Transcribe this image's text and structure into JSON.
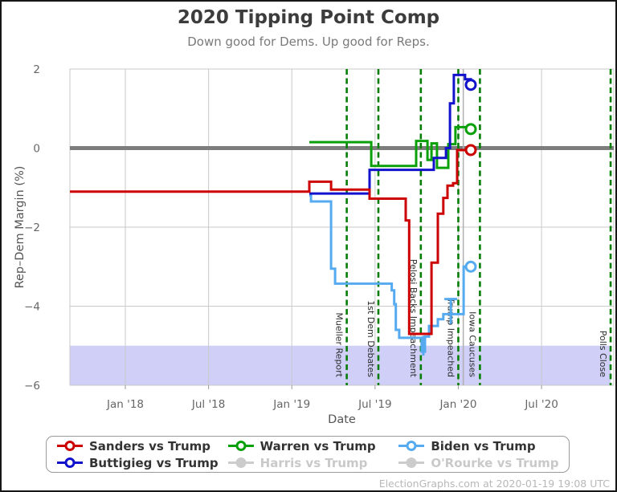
{
  "footer": {
    "credit": "ElectionGraphs.com at 2020-01-19 19:08 UTC"
  },
  "legend": {
    "entries": [
      {
        "label": "Sanders vs Trump",
        "color": "#cc0000",
        "active": true
      },
      {
        "label": "Warren vs Trump",
        "color": "#0aa00a",
        "active": true
      },
      {
        "label": "Biden vs Trump",
        "color": "#55aaf0",
        "active": true
      },
      {
        "label": "Buttigieg vs Trump",
        "color": "#1212cc",
        "active": true
      },
      {
        "label": "Harris vs Trump",
        "color": "#cccccc",
        "active": false
      },
      {
        "label": "O'Rourke vs Trump",
        "color": "#cccccc",
        "active": false
      }
    ]
  },
  "chart_data": {
    "type": "line",
    "title": "2020 Tipping Point Comp",
    "subtitle": "Down good for Dems. Up good for Reps.",
    "xlabel": "Date",
    "ylabel": "Rep–Dem Margin (%)",
    "xlim_years": [
      2017.667,
      2020.934
    ],
    "ylim": [
      -6,
      2
    ],
    "x_ticks": [
      {
        "year": 2018.0,
        "label": "Jan '18"
      },
      {
        "year": 2018.5,
        "label": "Jul '18"
      },
      {
        "year": 2019.0,
        "label": "Jan '19"
      },
      {
        "year": 2019.5,
        "label": "Jul '19"
      },
      {
        "year": 2020.0,
        "label": "Jan '20"
      },
      {
        "year": 2020.5,
        "label": "Jul '20"
      }
    ],
    "y_ticks": [
      {
        "value": 2,
        "label": "2"
      },
      {
        "value": 0,
        "label": "0"
      },
      {
        "value": -2,
        "label": "−2"
      },
      {
        "value": -4,
        "label": "−4"
      },
      {
        "value": -6,
        "label": "−6"
      }
    ],
    "zero_line": {
      "value": 0,
      "color": "#7d7d7d",
      "width": 5
    },
    "band": {
      "y_hi": -5,
      "y_lo": -6,
      "x_from_year": 2017.667,
      "x_to_year": 2020.915,
      "color": "#cfcff8"
    },
    "now_line": {
      "year": 2020.03,
      "color": "#b0b0b0"
    },
    "events": [
      {
        "label": "Mueller Report",
        "year": 2019.33
      },
      {
        "label": "1st Dem Debates",
        "year": 2019.52
      },
      {
        "label": "Pelosi Backs Impeachment",
        "year": 2019.775
      },
      {
        "label": "Trump Impeached",
        "year": 2020.0
      },
      {
        "label": "Iowa Caucuses",
        "year": 2020.13
      },
      {
        "label": "Polls Close",
        "year": 2020.915
      }
    ],
    "event_line_color": "#067d06",
    "grid_color": "#c9c9c9",
    "series": [
      {
        "name": "Sanders vs Trump",
        "color": "#cc0000",
        "active": true,
        "z": 4,
        "points": [
          [
            2017.667,
            -1.1
          ],
          [
            2019.105,
            -0.85
          ],
          [
            2019.236,
            -1.05
          ],
          [
            2019.467,
            -1.28
          ],
          [
            2019.684,
            -1.83
          ],
          [
            2019.705,
            -4.7
          ],
          [
            2019.839,
            -2.9
          ],
          [
            2019.877,
            -1.66
          ],
          [
            2019.91,
            -1.26
          ],
          [
            2019.935,
            -0.95
          ],
          [
            2019.969,
            -0.89
          ],
          [
            2019.993,
            -0.05
          ],
          [
            2020.075,
            -0.05
          ]
        ]
      },
      {
        "name": "Warren vs Trump",
        "color": "#0aa00a",
        "active": true,
        "z": 2,
        "points": [
          [
            2019.105,
            0.15
          ],
          [
            2019.477,
            -0.45
          ],
          [
            2019.747,
            0.18
          ],
          [
            2019.815,
            -0.3
          ],
          [
            2019.839,
            0.12
          ],
          [
            2019.872,
            -0.5
          ],
          [
            2019.94,
            0.1
          ],
          [
            2019.983,
            0.53
          ],
          [
            2020.075,
            0.48
          ]
        ]
      },
      {
        "name": "Biden vs Trump",
        "color": "#55aaf0",
        "active": true,
        "z": 1,
        "points": [
          [
            2019.105,
            -1.2
          ],
          [
            2019.115,
            -1.35
          ],
          [
            2019.236,
            -3.05
          ],
          [
            2019.26,
            -3.43
          ],
          [
            2019.6,
            -3.6
          ],
          [
            2019.615,
            -3.95
          ],
          [
            2019.625,
            -4.6
          ],
          [
            2019.645,
            -4.8
          ],
          [
            2019.78,
            -5.15
          ],
          [
            2019.8,
            -4.77
          ],
          [
            2019.824,
            -4.5
          ],
          [
            2019.877,
            -4.33
          ],
          [
            2019.91,
            -4.2
          ],
          [
            2020.032,
            -3.0
          ],
          [
            2020.075,
            -3.0
          ]
        ]
      },
      {
        "name": "Buttigieg vs Trump",
        "color": "#1212cc",
        "active": true,
        "z": 3,
        "points": [
          [
            2019.105,
            -1.15
          ],
          [
            2019.467,
            -0.55
          ],
          [
            2019.853,
            -0.25
          ],
          [
            2019.926,
            0.0
          ],
          [
            2019.95,
            1.13
          ],
          [
            2019.973,
            1.85
          ],
          [
            2020.041,
            1.74
          ],
          [
            2020.075,
            1.6
          ]
        ]
      },
      {
        "name": "Harris vs Trump",
        "color": "#cccccc",
        "active": false,
        "z": 0,
        "points": []
      },
      {
        "name": "O'Rourke vs Trump",
        "color": "#cccccc",
        "active": false,
        "z": 0,
        "points": []
      }
    ],
    "error_bars": [
      {
        "series": "Biden vs Trump",
        "year": 2019.79,
        "from": -5.25,
        "to": -4.75,
        "cap_top": false
      },
      {
        "series": "Biden vs Trump",
        "year": 2019.955,
        "from": -4.45,
        "to": -3.82,
        "cap_top": true
      }
    ]
  }
}
